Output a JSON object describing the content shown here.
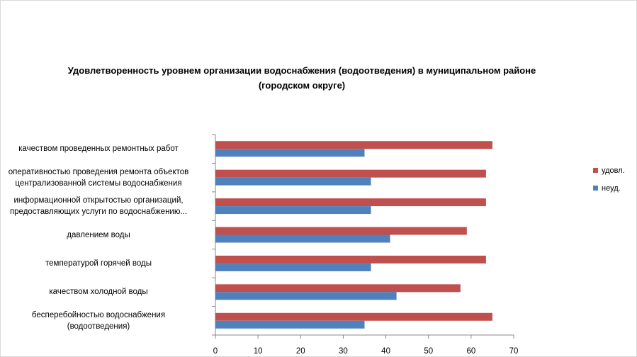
{
  "chart_data": {
    "type": "bar",
    "orientation": "horizontal",
    "title": "Удовлетворенность уровнем организации водоснабжения (водоотведения) в муниципальном районе (городском округе)",
    "categories": [
      [
        "качеством  проведенных  ремонтных работ"
      ],
      [
        "оперативностью  проведения  ремонта объектов",
        "централизованной системы водоснабжения"
      ],
      [
        "информационной открытостью организаций,",
        "предоставляющих услуги по водоснабжению..."
      ],
      [
        "давлением  воды"
      ],
      [
        "температурой горячей воды"
      ],
      [
        "качеством холодной воды"
      ],
      [
        "бесперебойностью  водоснабжения",
        "(водоотведения)"
      ]
    ],
    "series": [
      {
        "name": "удовл.",
        "color": "#c0504d",
        "values": [
          65,
          63.5,
          63.5,
          59,
          63.5,
          57.5,
          65
        ]
      },
      {
        "name": "неуд.",
        "color": "#4f81bd",
        "values": [
          35,
          36.5,
          36.5,
          41,
          36.5,
          42.5,
          35
        ]
      }
    ],
    "xlim": [
      0,
      70
    ],
    "xticks": [
      0,
      10,
      20,
      30,
      40,
      50,
      60,
      70
    ],
    "grid": false,
    "legend_position": "right"
  }
}
